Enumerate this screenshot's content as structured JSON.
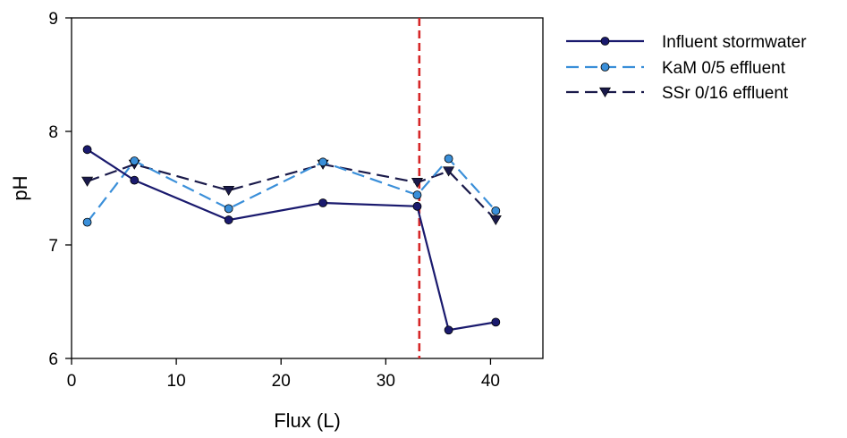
{
  "chart_data": {
    "type": "line",
    "title": "",
    "xlabel": "Flux (L)",
    "ylabel": "pH",
    "xlim": [
      0,
      45
    ],
    "ylim": [
      6,
      9
    ],
    "x_ticks": [
      0,
      10,
      20,
      30,
      40
    ],
    "y_ticks": [
      6,
      7,
      8,
      9
    ],
    "x_tick_labels": [
      "0",
      "10",
      "20",
      "30",
      "40"
    ],
    "y_tick_labels": [
      "6",
      "7",
      "8",
      "9"
    ],
    "grid": false,
    "legend_position": "outside-top-right",
    "reference_line": {
      "x": 33.2,
      "style": "dashed",
      "color": "#d62728"
    },
    "series": [
      {
        "name": "Influent stormwater",
        "color": "#1a1a6e",
        "dash": "solid",
        "marker": "circle",
        "x": [
          1.5,
          6,
          15,
          24,
          33,
          36,
          40.5
        ],
        "y": [
          7.84,
          7.57,
          7.22,
          7.37,
          7.34,
          6.25,
          6.32
        ]
      },
      {
        "name": "KaM 0/5 effluent",
        "color": "#3a8fd9",
        "dash": "long-dash",
        "marker": "circle",
        "x": [
          1.5,
          6,
          15,
          24,
          33,
          36,
          40.5
        ],
        "y": [
          7.2,
          7.74,
          7.32,
          7.73,
          7.44,
          7.76,
          7.3
        ]
      },
      {
        "name": "SSr 0/16 effluent",
        "color": "#1a1a4a",
        "dash": "long-dash",
        "marker": "triangle-down",
        "x": [
          1.5,
          6,
          15,
          24,
          33,
          36,
          40.5
        ],
        "y": [
          7.56,
          7.71,
          7.48,
          7.71,
          7.55,
          7.65,
          7.22
        ]
      }
    ]
  }
}
